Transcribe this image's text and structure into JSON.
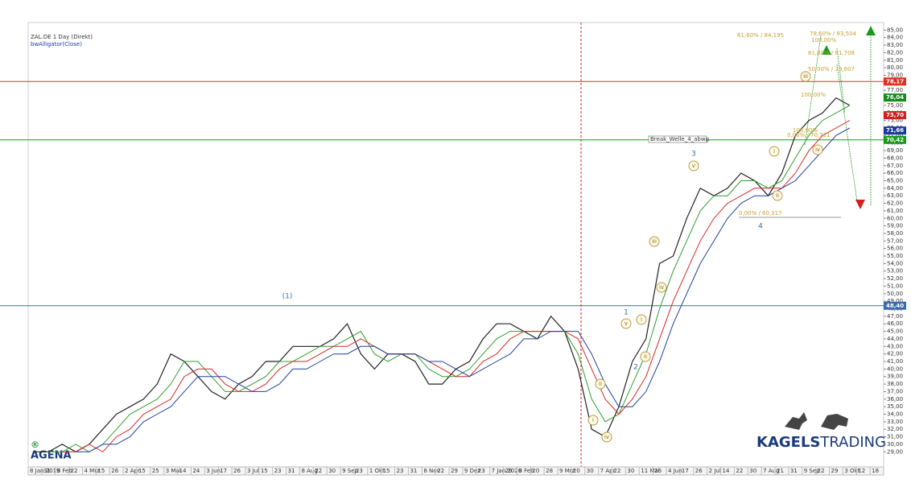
{
  "chart_data": {
    "type": "line",
    "title": "ZAL.DE 1 Day (Direkt)",
    "subtitle": "bwAlligator(Close)",
    "categories": [
      "8 Jan 2019",
      "31",
      "8 Feb",
      "22",
      "4 Mrz",
      "15",
      "26",
      "2 Apr",
      "15",
      "25",
      "3 Mai",
      "14",
      "24",
      "3 Jun",
      "17",
      "26",
      "3 Jul",
      "15",
      "23",
      "31",
      "8 Aug",
      "22",
      "30",
      "9 Sep",
      "23",
      "1 Okt",
      "15",
      "23",
      "31",
      "8 Nov",
      "22",
      "29",
      "9 Dez",
      "23",
      "7 Jan 2020",
      "29",
      "8 Feb",
      "20",
      "28",
      "9 Mrz",
      "20",
      "30",
      "7 Apr",
      "22",
      "30",
      "11 Mai",
      "26",
      "4 Jun",
      "17",
      "26",
      "2 Jul",
      "14",
      "22",
      "30",
      "7 Aug",
      "21",
      "31",
      "9 Sep",
      "22",
      "29",
      "3 Okt",
      "12",
      "18"
    ],
    "series": [
      {
        "color": "#222222",
        "values": [
          29,
          29,
          30,
          29,
          30,
          32,
          34,
          35,
          36,
          38,
          42,
          41,
          39,
          37,
          36,
          38,
          39,
          41,
          41,
          43,
          43,
          43,
          44,
          46,
          42,
          40,
          42,
          42,
          41,
          38,
          38,
          40,
          41,
          44,
          46,
          46,
          45,
          44,
          47,
          45,
          40,
          32,
          31,
          35,
          41,
          44,
          54,
          55,
          60,
          64,
          63,
          64,
          66,
          65,
          63,
          66,
          71,
          73,
          74,
          76,
          75,
          null,
          null
        ]
      },
      {
        "color": "#2ca02c",
        "values": [
          null,
          29,
          29,
          30,
          29,
          30,
          32,
          34,
          35,
          36,
          38,
          41,
          41,
          39,
          37,
          37,
          38,
          39,
          41,
          41,
          42,
          43,
          43,
          44,
          45,
          42,
          41,
          42,
          42,
          40,
          39,
          39,
          40,
          42,
          44,
          45,
          45,
          45,
          45,
          45,
          42,
          36,
          33,
          34,
          38,
          42,
          48,
          53,
          57,
          61,
          63,
          63,
          65,
          65,
          64,
          65,
          68,
          71,
          73,
          74,
          75,
          null,
          null
        ]
      },
      {
        "color": "#d62728",
        "values": [
          null,
          null,
          29,
          29,
          30,
          29,
          31,
          32,
          34,
          35,
          36,
          39,
          40,
          40,
          38,
          37,
          37,
          38,
          40,
          41,
          41,
          42,
          43,
          43,
          44,
          43,
          42,
          42,
          42,
          41,
          40,
          39,
          39,
          41,
          42,
          44,
          45,
          45,
          45,
          45,
          44,
          40,
          36,
          34,
          36,
          39,
          44,
          49,
          53,
          57,
          60,
          62,
          63,
          64,
          64,
          64,
          66,
          69,
          71,
          72,
          73,
          null,
          null
        ]
      },
      {
        "color": "#1f3f9f",
        "values": [
          null,
          null,
          null,
          29,
          29,
          30,
          30,
          31,
          33,
          34,
          35,
          37,
          39,
          39,
          39,
          38,
          37,
          37,
          38,
          40,
          40,
          41,
          42,
          42,
          43,
          43,
          42,
          42,
          42,
          41,
          41,
          40,
          39,
          40,
          41,
          42,
          44,
          44,
          45,
          45,
          45,
          42,
          38,
          35,
          35,
          37,
          41,
          46,
          50,
          54,
          57,
          60,
          62,
          63,
          63,
          64,
          65,
          67,
          69,
          71,
          72,
          null,
          null
        ]
      }
    ],
    "ylim": [
      27,
      86
    ],
    "yticks": [
      {
        "value": 29,
        "label": "29,00"
      },
      {
        "value": 30,
        "label": "30,00"
      },
      {
        "value": 31,
        "label": "31,00"
      },
      {
        "value": 32,
        "label": "32,00"
      },
      {
        "value": 33,
        "label": "33,00"
      },
      {
        "value": 34,
        "label": "34,00"
      },
      {
        "value": 35,
        "label": "35,00"
      },
      {
        "value": 36,
        "label": "36,00"
      },
      {
        "value": 37,
        "label": "37,00"
      },
      {
        "value": 38,
        "label": "38,00"
      },
      {
        "value": 39,
        "label": "39,00"
      },
      {
        "value": 40,
        "label": "40,00"
      },
      {
        "value": 41,
        "label": "41,00"
      },
      {
        "value": 42,
        "label": "42,00"
      },
      {
        "value": 43,
        "label": "43,00"
      },
      {
        "value": 44,
        "label": "44,00"
      },
      {
        "value": 45,
        "label": "45,00"
      },
      {
        "value": 46,
        "label": "46,00"
      },
      {
        "value": 47,
        "label": "47,00"
      },
      {
        "value": 48,
        "label": "48,00"
      },
      {
        "value": 49,
        "label": "49,00"
      },
      {
        "value": 50,
        "label": "50,00"
      },
      {
        "value": 51,
        "label": "51,00"
      },
      {
        "value": 52,
        "label": "52,00"
      },
      {
        "value": 53,
        "label": "53,00"
      },
      {
        "value": 54,
        "label": "54,00"
      },
      {
        "value": 55,
        "label": "55,00"
      },
      {
        "value": 56,
        "label": "56,00"
      },
      {
        "value": 57,
        "label": "57,00"
      },
      {
        "value": 58,
        "label": "58,00"
      },
      {
        "value": 59,
        "label": "59,00"
      },
      {
        "value": 60,
        "label": "60,00"
      },
      {
        "value": 61,
        "label": "61,00"
      },
      {
        "value": 62,
        "label": "62,00"
      },
      {
        "value": 63,
        "label": "63,00"
      },
      {
        "value": 64,
        "label": "64,00"
      },
      {
        "value": 65,
        "label": "65,00"
      },
      {
        "value": 66,
        "label": "66,00"
      },
      {
        "value": 67,
        "label": "67,00"
      },
      {
        "value": 68,
        "label": "68,00"
      },
      {
        "value": 69,
        "label": "69,00"
      },
      {
        "value": 70,
        "label": "70,00"
      },
      {
        "value": 71,
        "label": "71,00"
      },
      {
        "value": 72,
        "label": "72,00"
      },
      {
        "value": 73,
        "label": "73,00"
      },
      {
        "value": 74,
        "label": "74,00"
      },
      {
        "value": 75,
        "label": "75,00"
      },
      {
        "value": 76,
        "label": "76,00"
      },
      {
        "value": 77,
        "label": "77,00"
      },
      {
        "value": 78,
        "label": "78,00"
      },
      {
        "value": 79,
        "label": "79,00"
      },
      {
        "value": 80,
        "label": "80,00"
      },
      {
        "value": 81,
        "label": "81,00"
      },
      {
        "value": 82,
        "label": "82,00"
      },
      {
        "value": 83,
        "label": "83,00"
      },
      {
        "value": 84,
        "label": "84,00"
      },
      {
        "value": 85,
        "label": "85,00"
      }
    ],
    "levels": [
      {
        "value": 78.17,
        "label": "78,17",
        "color": "#e03020",
        "line": true
      },
      {
        "value": 76.04,
        "label": "76,04",
        "color": "#1a8a1a",
        "line": false
      },
      {
        "value": 73.7,
        "label": "73,70",
        "color": "#d02020",
        "line": false
      },
      {
        "value": 71.66,
        "label": "71,66",
        "color": "#1a3aa0",
        "line": false
      },
      {
        "value": 70.42,
        "label": "70,42",
        "color": "#1a9a1a",
        "line": true
      },
      {
        "value": 48.4,
        "label": "48,40",
        "color": "#3a6ab0",
        "line": true
      }
    ],
    "annotations": [
      {
        "text": "(1)",
        "style": "plain"
      },
      {
        "text": "1",
        "style": "plain"
      },
      {
        "text": "2",
        "style": "plain"
      },
      {
        "text": "3",
        "style": "plain"
      },
      {
        "text": "4",
        "style": "plain"
      },
      {
        "text": "i",
        "style": "circle"
      },
      {
        "text": "iv",
        "style": "circle"
      },
      {
        "text": "ii",
        "style": "circle"
      },
      {
        "text": "iii",
        "style": "circle"
      },
      {
        "text": "iv",
        "style": "circle"
      },
      {
        "text": "v",
        "style": "circle"
      },
      {
        "text": "i",
        "style": "circle"
      },
      {
        "text": "ii",
        "style": "circle"
      },
      {
        "text": "v",
        "style": "circle"
      },
      {
        "text": "i",
        "style": "circle"
      },
      {
        "text": "ii",
        "style": "circle"
      },
      {
        "text": "iii",
        "style": "circle"
      },
      {
        "text": "iv",
        "style": "circle"
      },
      {
        "text": "61,80% / 84,195",
        "style": "fib"
      },
      {
        "text": "78,60% / 83,504",
        "style": "fib"
      },
      {
        "text": "100,00%",
        "style": "fib"
      },
      {
        "text": "61,80% / 81,708",
        "style": "fib"
      },
      {
        "text": "50,00% / 79,607",
        "style": "fib"
      },
      {
        "text": "100,00%",
        "style": "fib"
      },
      {
        "text": "100,00%",
        "style": "fib"
      },
      {
        "text": "0,00% / 70,711",
        "style": "fib"
      },
      {
        "text": "0,00% / 60,317",
        "style": "fib"
      },
      {
        "text": "Break_Welle_4_abwg",
        "style": "box"
      }
    ],
    "branding": {
      "left": "AGENA",
      "right_bold": "KAGELS",
      "right": "TRADING"
    }
  }
}
